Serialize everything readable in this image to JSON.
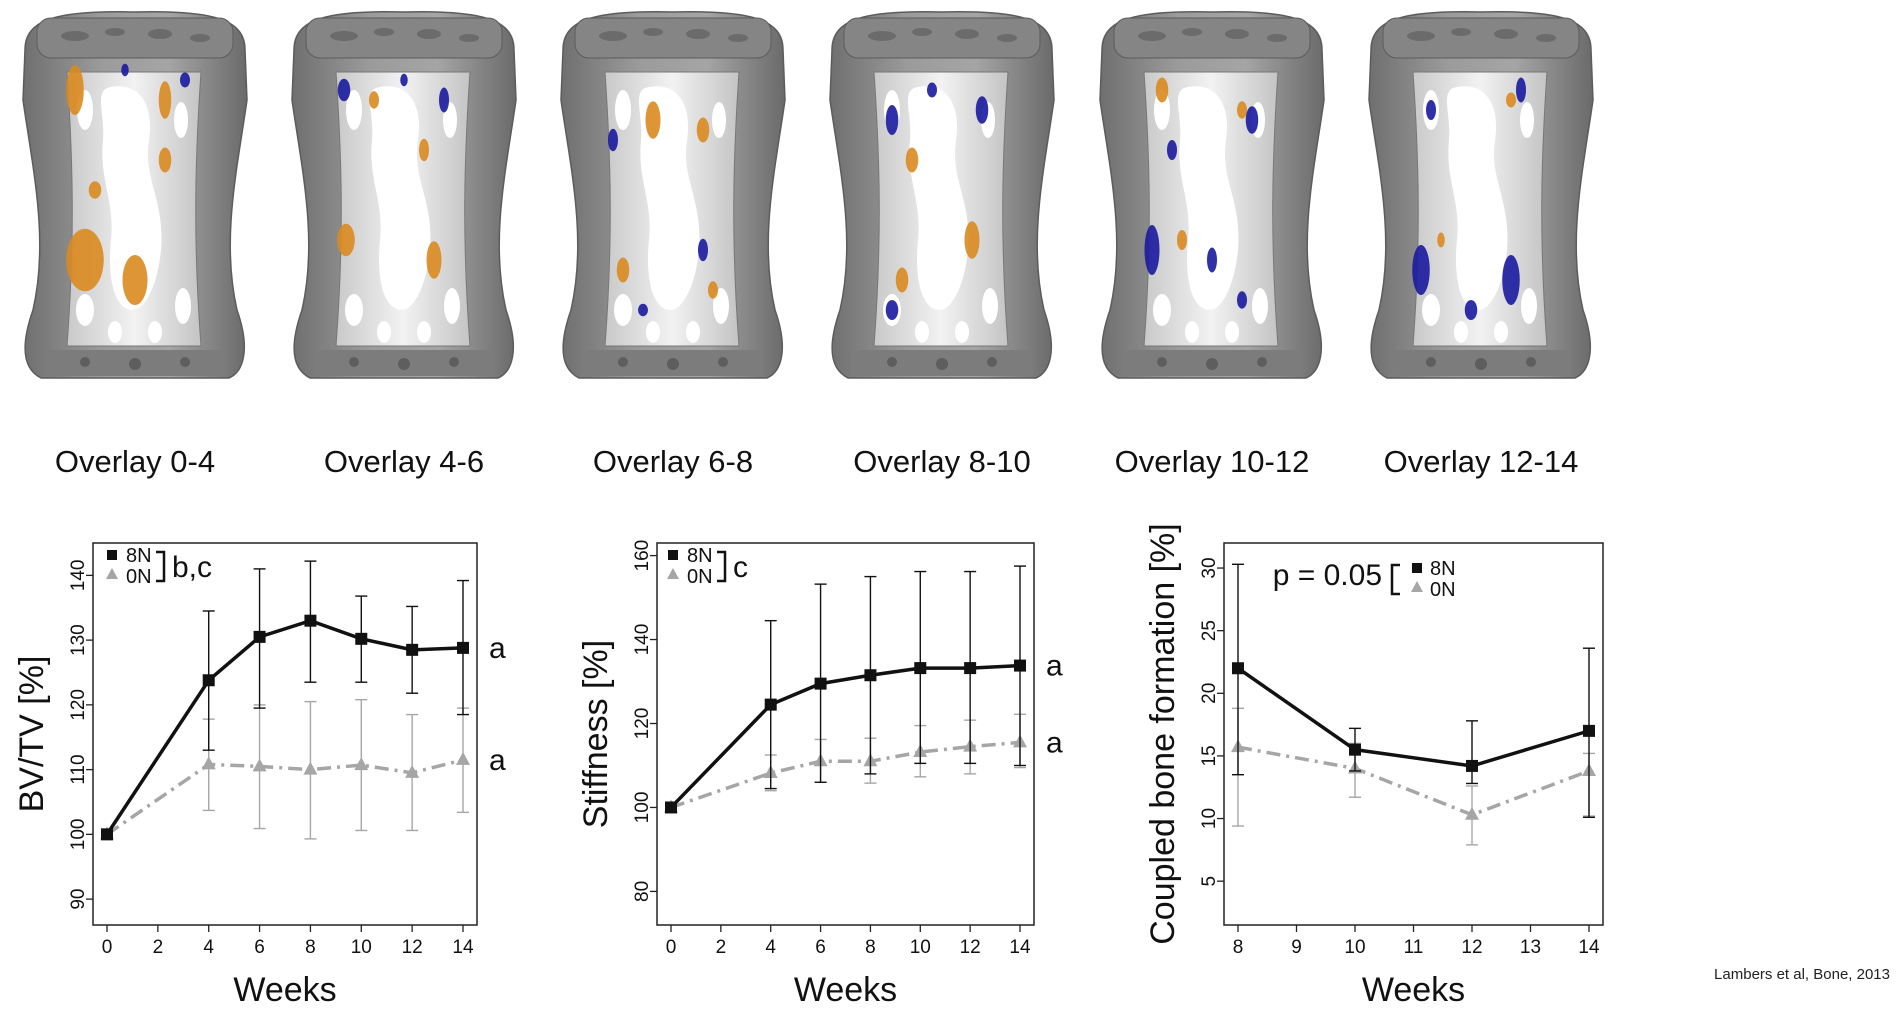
{
  "overlays": {
    "captions": [
      "Overlay 0-4",
      "Overlay 4-6",
      "Overlay 6-8",
      "Overlay 8-10",
      "Overlay 10-12",
      "Overlay 12-14"
    ],
    "colors": {
      "bone": "#8a8a8a",
      "formation": "#d98a1f",
      "resorption": "#1a1aa0",
      "quiescent": "#e6e6e6"
    }
  },
  "citation": "Lambers et al, Bone, 2013",
  "colors": {
    "series_8N": "#111111",
    "series_0N": "#a6a6a6"
  },
  "chart_data": [
    {
      "type": "line",
      "ylabel": "BV/TV [%]",
      "xlabel": "Weeks",
      "xlim": [
        0,
        14
      ],
      "ylim": [
        86,
        145
      ],
      "xticks": [
        0,
        2,
        4,
        6,
        8,
        10,
        12,
        14
      ],
      "yticks": [
        90,
        100,
        110,
        120,
        130,
        140
      ],
      "legend_significance": "b,c",
      "series": [
        {
          "name": "8N",
          "marker": "square",
          "line": "solid",
          "x": [
            0,
            4,
            6,
            8,
            10,
            12,
            14
          ],
          "y": [
            100,
            123.8,
            130.5,
            133,
            130.2,
            128.5,
            128.8
          ],
          "err_low": [
            100,
            113,
            119.5,
            123.5,
            123.5,
            121.8,
            118.5
          ],
          "err_high": [
            100,
            134.5,
            141,
            142.2,
            136.8,
            135.2,
            139.2
          ],
          "end_label": "a"
        },
        {
          "name": "0N",
          "marker": "triangle",
          "line": "dashdot",
          "x": [
            0,
            4,
            6,
            8,
            10,
            12,
            14
          ],
          "y": [
            100,
            110.8,
            110.5,
            110,
            110.7,
            109.5,
            111.5
          ],
          "err_low": [
            100,
            103.7,
            100.9,
            99.3,
            100.6,
            100.6,
            103.4
          ],
          "err_high": [
            100,
            117.8,
            120,
            120.5,
            120.8,
            118.5,
            119.5
          ],
          "end_label": "a"
        }
      ]
    },
    {
      "type": "line",
      "ylabel": "Stiffness [%]",
      "xlabel": "Weeks",
      "xlim": [
        0,
        14
      ],
      "ylim": [
        72,
        163
      ],
      "xticks": [
        0,
        2,
        4,
        6,
        8,
        10,
        12,
        14
      ],
      "yticks": [
        80,
        100,
        120,
        140,
        160
      ],
      "legend_significance": "c",
      "series": [
        {
          "name": "8N",
          "marker": "square",
          "line": "solid",
          "x": [
            0,
            4,
            6,
            8,
            10,
            12,
            14
          ],
          "y": [
            100,
            124.5,
            129.5,
            131.5,
            133.2,
            133.2,
            133.8
          ],
          "err_low": [
            100,
            104.5,
            106,
            108,
            110.5,
            110.5,
            110
          ],
          "err_high": [
            100,
            144.5,
            153.2,
            155,
            156.2,
            156.2,
            157.5
          ],
          "end_label": "a"
        },
        {
          "name": "0N",
          "marker": "triangle",
          "line": "dashdot",
          "x": [
            0,
            4,
            6,
            8,
            10,
            12,
            14
          ],
          "y": [
            100,
            108.2,
            111,
            111,
            113.2,
            114.5,
            115.5
          ],
          "err_low": [
            100,
            104,
            106,
            105.8,
            107.3,
            108,
            109.5
          ],
          "err_high": [
            100,
            112.5,
            116.2,
            116.5,
            119.5,
            120.8,
            122.2
          ],
          "end_label": "a"
        }
      ]
    },
    {
      "type": "line",
      "ylabel": "Coupled bone formation [%]",
      "xlabel": "Weeks",
      "xlim": [
        8,
        14
      ],
      "ylim": [
        1.5,
        32
      ],
      "xticks": [
        8,
        9,
        10,
        11,
        12,
        13,
        14
      ],
      "yticks": [
        5,
        10,
        15,
        20,
        25,
        30
      ],
      "legend_significance": "p = 0.05",
      "series": [
        {
          "name": "8N",
          "marker": "square",
          "line": "solid",
          "x": [
            8,
            10,
            12,
            14
          ],
          "y": [
            22,
            15.5,
            14.2,
            17
          ],
          "err_low": [
            13.5,
            13.8,
            12.8,
            10.1
          ],
          "err_high": [
            30.3,
            17.2,
            17.8,
            23.6
          ]
        },
        {
          "name": "0N",
          "marker": "triangle",
          "line": "dashdot",
          "x": [
            8,
            10,
            12,
            14
          ],
          "y": [
            15.7,
            14,
            10.3,
            13.8
          ],
          "err_low": [
            9.4,
            11.7,
            7.9,
            10.2
          ],
          "err_high": [
            18.8,
            16,
            12.6,
            15.2
          ]
        }
      ]
    }
  ]
}
